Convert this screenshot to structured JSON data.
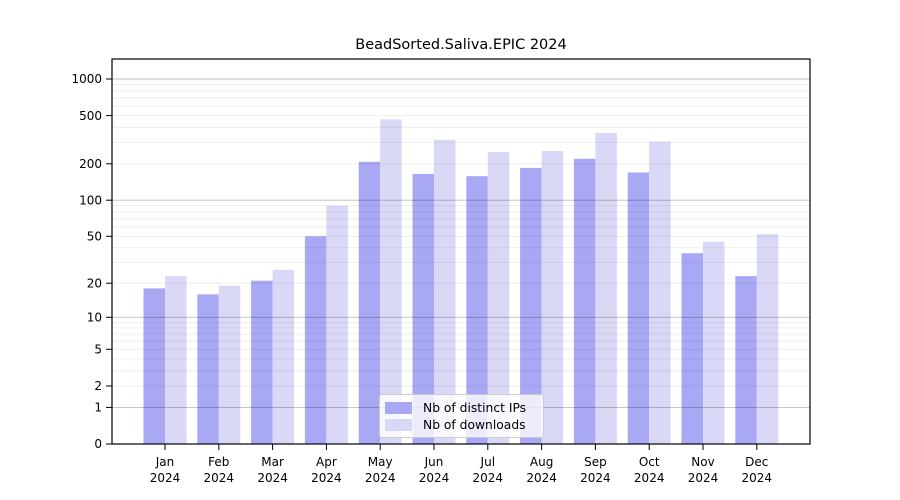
{
  "chart_data": {
    "type": "bar",
    "title": "BeadSorted.Saliva.EPIC 2024",
    "categories": [
      "Jan",
      "Feb",
      "Mar",
      "Apr",
      "May",
      "Jun",
      "Jul",
      "Aug",
      "Sep",
      "Oct",
      "Nov",
      "Dec"
    ],
    "x_year_label": "2024",
    "series": [
      {
        "name": "Nb of distinct IPs",
        "color": "#a8a8f5",
        "values": [
          18,
          16,
          21,
          50,
          208,
          165,
          158,
          185,
          220,
          170,
          36,
          23
        ]
      },
      {
        "name": "Nb of downloads",
        "color": "#d9d9f7",
        "values": [
          23,
          19,
          26,
          90,
          465,
          315,
          250,
          255,
          360,
          305,
          45,
          52
        ]
      }
    ],
    "y_ticks": [
      0,
      1,
      2,
      5,
      10,
      20,
      50,
      100,
      200,
      500,
      1000
    ],
    "y_scale": "log1p",
    "ylim": [
      0,
      1460
    ],
    "grid": true,
    "legend": {
      "position": "lower center"
    }
  }
}
